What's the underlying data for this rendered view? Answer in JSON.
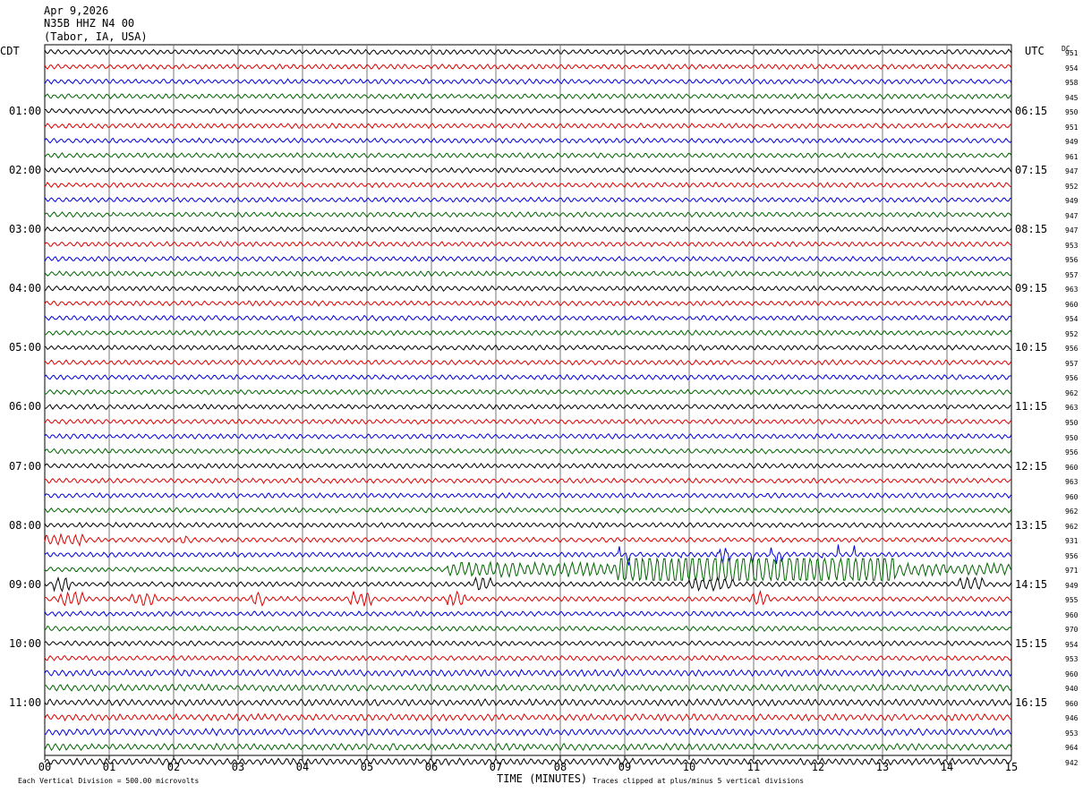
{
  "header": {
    "date": "Apr 9,2026",
    "station": "N35B HHZ N4 00",
    "location": "(Tabor, IA, USA)"
  },
  "footer": {
    "scale_note": "Each Vertical Division =  500.00 microvolts",
    "xlabel": "TIME (MINUTES)",
    "clip_note": "Traces clipped at plus/minus 5 vertical divisions"
  },
  "chart_data": {
    "type": "line",
    "title": "",
    "left_axis_label": "CDT",
    "right_axis_label": "UTC",
    "dc_label": "DC",
    "xlim": [
      0,
      15
    ],
    "x_ticks": [
      "00",
      "01",
      "02",
      "03",
      "04",
      "05",
      "06",
      "07",
      "08",
      "09",
      "10",
      "11",
      "12",
      "13",
      "14",
      "15"
    ],
    "grid": true,
    "trace_minutes": 15,
    "trace_colors": [
      "#000000",
      "#dd0000",
      "#0000dd",
      "#006400"
    ],
    "left_hour_labels": [
      "01:00",
      "02:00",
      "03:00",
      "04:00",
      "05:00",
      "06:00",
      "07:00",
      "08:00",
      "09:00",
      "10:00",
      "11:00"
    ],
    "right_hour_labels": [
      "06:15",
      "07:15",
      "08:15",
      "09:15",
      "10:15",
      "11:15",
      "12:15",
      "13:15",
      "14:15",
      "15:15",
      "16:15"
    ],
    "dc_offsets": [
      951,
      954,
      958,
      945,
      950,
      951,
      949,
      961,
      947,
      952,
      949,
      947,
      947,
      953,
      956,
      957,
      963,
      960,
      954,
      952,
      956,
      957,
      956,
      962,
      963,
      950,
      950,
      956,
      960,
      963,
      960,
      962,
      962,
      931,
      956,
      971,
      949,
      955,
      960,
      970,
      954,
      953,
      960,
      940,
      960,
      946,
      953,
      964,
      942
    ]
  }
}
